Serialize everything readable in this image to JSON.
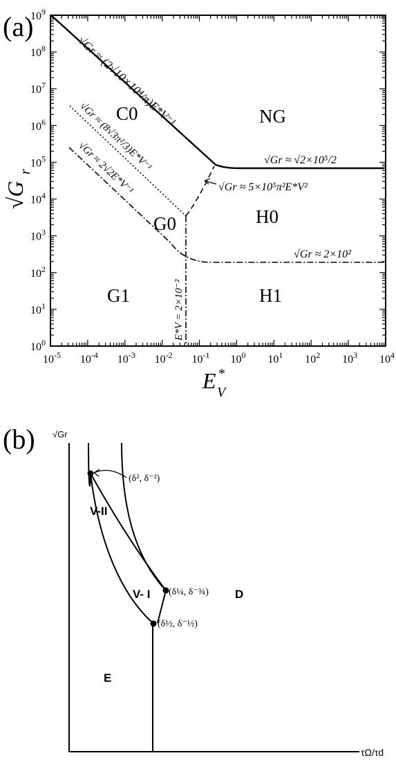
{
  "panel_a": {
    "label": "(a)",
    "xlabel": "E",
    "xlabel_sup": "*",
    "xlabel_sub": "V",
    "ylabel": "√G",
    "ylabel_sub": "r",
    "x_ticks": [
      "10-5",
      "10-4",
      "10-3",
      "10-2",
      "10-1",
      "100",
      "101",
      "102",
      "103",
      "104"
    ],
    "y_ticks": [
      "109",
      "108",
      "107",
      "106",
      "105",
      "104",
      "103",
      "102",
      "101",
      "100"
    ],
    "regions": {
      "c0": "C0",
      "ng": "NG",
      "g0": "G0",
      "h0": "H0",
      "g1": "G1",
      "h1": "H1"
    },
    "annotations": {
      "top_slope": "√Gr ≈ (2√10×10⁴/π)E*V⁻¹",
      "mid_slope": "√Gr ≈ (8√3π²/3)E*V⁻¹",
      "low_slope": "√Gr ≈ 2√2E*V⁻¹",
      "top_flat": "√Gr ≈ √2×10⁵/2",
      "dashed": "√Gr ≈ 5×10⁵π²E*V²",
      "low_flat": "√Gr ≈ 2×10²",
      "vertical": "E*V = 2×10⁻²"
    }
  },
  "panel_b": {
    "label": "(b)",
    "ylabel": "√Gr",
    "xlabel": "τΩ/τd",
    "regions": {
      "v2": "V-II",
      "v1": "V- I",
      "d": "D",
      "e": "E"
    },
    "points": [
      "(δ², δ⁻²)",
      "(δ¼, δ⁻¾)",
      "(δ½, δ⁻½)"
    ]
  }
}
